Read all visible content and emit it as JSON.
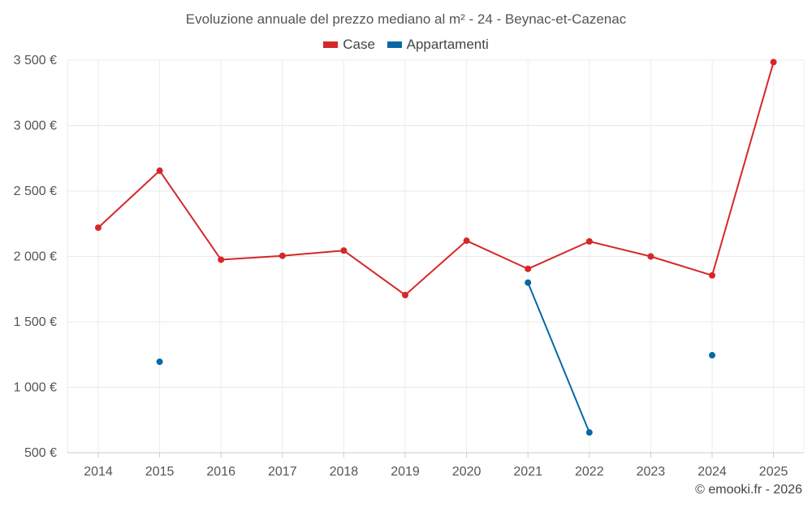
{
  "chart_data": {
    "type": "line",
    "title": "Evoluzione annuale del prezzo mediano al m² - 24 - Beynac-et-Cazenac",
    "categories": [
      "2014",
      "2015",
      "2016",
      "2017",
      "2018",
      "2019",
      "2020",
      "2021",
      "2022",
      "2023",
      "2024",
      "2025"
    ],
    "series": [
      {
        "name": "Case",
        "color": "#d62728",
        "values": [
          2220,
          2655,
          1975,
          2005,
          2045,
          1705,
          2120,
          1905,
          2115,
          2000,
          1855,
          3485
        ]
      },
      {
        "name": "Appartamenti",
        "color": "#0868a6",
        "values": [
          null,
          1195,
          null,
          null,
          null,
          null,
          null,
          1800,
          655,
          null,
          1245,
          null
        ]
      }
    ],
    "ylim": [
      500,
      3500
    ],
    "yticks": [
      {
        "value": 500,
        "label": "500 €"
      },
      {
        "value": 1000,
        "label": "1 000 €"
      },
      {
        "value": 1500,
        "label": "1 500 €"
      },
      {
        "value": 2000,
        "label": "2 000 €"
      },
      {
        "value": 2500,
        "label": "2 500 €"
      },
      {
        "value": 3000,
        "label": "3 000 €"
      },
      {
        "value": 3500,
        "label": "3 500 €"
      }
    ],
    "grid": true,
    "legend_position": "top-center"
  },
  "footer": {
    "credit": "© emooki.fr - 2026"
  }
}
